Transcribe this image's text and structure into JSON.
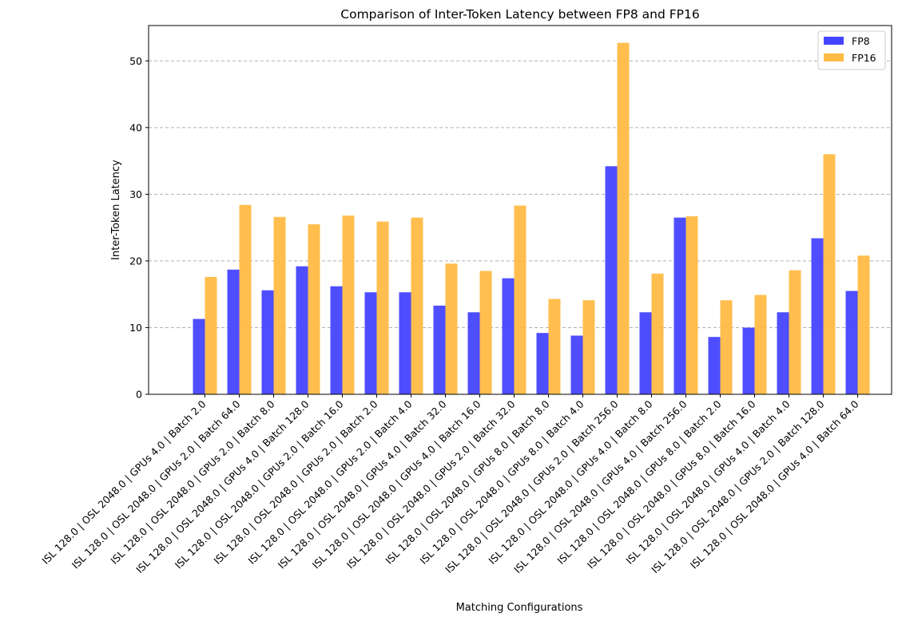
{
  "chart_data": {
    "type": "bar",
    "title": "Comparison of Inter-Token Latency between FP8 and FP16",
    "xlabel": "Matching Configurations",
    "ylabel": "Inter-Token Latency",
    "ylim": [
      0,
      55.3
    ],
    "yticks": [
      0,
      10,
      20,
      30,
      40,
      50
    ],
    "grid": "y-dashed",
    "legend_position": "top-right",
    "categories": [
      "ISL 128.0 | OSL 2048.0 | GPUs 4.0 | Batch 2.0",
      "ISL 128.0 | OSL 2048.0 | GPUs 2.0 | Batch 64.0",
      "ISL 128.0 | OSL 2048.0 | GPUs 2.0 | Batch 8.0",
      "ISL 128.0 | OSL 2048.0 | GPUs 4.0 | Batch 128.0",
      "ISL 128.0 | OSL 2048.0 | GPUs 2.0 | Batch 16.0",
      "ISL 128.0 | OSL 2048.0 | GPUs 2.0 | Batch 2.0",
      "ISL 128.0 | OSL 2048.0 | GPUs 2.0 | Batch 4.0",
      "ISL 128.0 | OSL 2048.0 | GPUs 4.0 | Batch 32.0",
      "ISL 128.0 | OSL 2048.0 | GPUs 4.0 | Batch 16.0",
      "ISL 128.0 | OSL 2048.0 | GPUs 2.0 | Batch 32.0",
      "ISL 128.0 | OSL 2048.0 | GPUs 8.0 | Batch 8.0",
      "ISL 128.0 | OSL 2048.0 | GPUs 8.0 | Batch 4.0",
      "ISL 128.0 | OSL 2048.0 | GPUs 2.0 | Batch 256.0",
      "ISL 128.0 | OSL 2048.0 | GPUs 4.0 | Batch 8.0",
      "ISL 128.0 | OSL 2048.0 | GPUs 4.0 | Batch 256.0",
      "ISL 128.0 | OSL 2048.0 | GPUs 8.0 | Batch 2.0",
      "ISL 128.0 | OSL 2048.0 | GPUs 8.0 | Batch 16.0",
      "ISL 128.0 | OSL 2048.0 | GPUs 4.0 | Batch 4.0",
      "ISL 128.0 | OSL 2048.0 | GPUs 2.0 | Batch 128.0",
      "ISL 128.0 | OSL 2048.0 | GPUs 4.0 | Batch 64.0"
    ],
    "series": [
      {
        "name": "FP8",
        "color": "#4444ff",
        "values": [
          11.3,
          18.7,
          15.6,
          19.2,
          16.2,
          15.3,
          15.3,
          13.3,
          12.3,
          17.4,
          9.2,
          8.8,
          34.2,
          12.3,
          26.5,
          8.6,
          10.0,
          12.3,
          23.4,
          15.5
        ]
      },
      {
        "name": "FP16",
        "color": "#ffbb44",
        "values": [
          17.6,
          28.4,
          26.6,
          25.5,
          26.8,
          25.9,
          26.5,
          19.6,
          18.5,
          28.3,
          14.3,
          14.1,
          52.7,
          18.1,
          26.7,
          14.1,
          14.9,
          18.6,
          36.0,
          20.8
        ]
      }
    ]
  }
}
